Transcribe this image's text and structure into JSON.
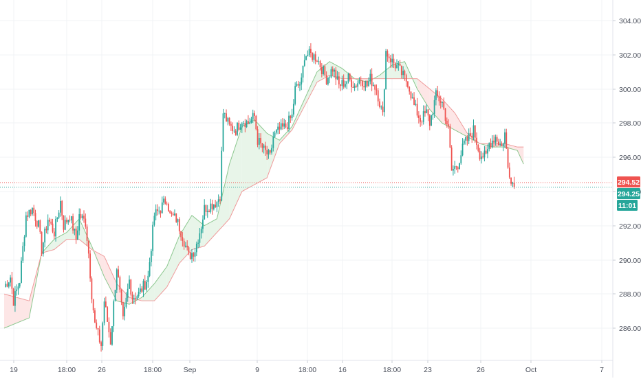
{
  "chart_data": {
    "type": "candlestick",
    "x_ticks": [
      "19",
      "18:00",
      "26",
      "18:00",
      "Sep",
      "9",
      "18:00",
      "16",
      "18:00",
      "23",
      "26",
      "Oct",
      "7"
    ],
    "y_ticks": [
      "286.00",
      "288.00",
      "290.00",
      "292.00",
      "294.00",
      "296.00",
      "298.00",
      "300.00",
      "302.00",
      "304.00"
    ],
    "ylim": [
      284.2,
      305.1
    ],
    "grid": true,
    "price_labels": {
      "top": {
        "text": "294.52",
        "value": 294.52,
        "color": "#ef5350"
      },
      "current": {
        "text": "294.25",
        "value": 294.25,
        "color": "#26a69a"
      },
      "countdown": {
        "text": "11:01",
        "color": "#26a69a"
      }
    },
    "colors": {
      "up": "#26a69a",
      "down": "#ef5350",
      "cloud_up": "#e8f5e9",
      "cloud_down": "#fde6e6",
      "span_a": "#8bc78e",
      "span_b": "#ef9a9a",
      "grid": "#f0f3f6",
      "axis_text": "#4a4f5b",
      "hline": "#26a69a"
    },
    "price_path": [
      [
        0,
        288.4
      ],
      [
        2,
        289.0
      ],
      [
        3,
        287.6
      ],
      [
        5,
        288.8
      ],
      [
        7,
        292.6
      ],
      [
        9,
        293.0
      ],
      [
        11,
        292.0
      ],
      [
        12,
        290.6
      ],
      [
        14,
        292.4
      ],
      [
        16,
        291.6
      ],
      [
        18,
        293.4
      ],
      [
        19,
        292.0
      ],
      [
        21,
        292.6
      ],
      [
        23,
        291.2
      ],
      [
        24,
        292.6
      ],
      [
        26,
        292.2
      ],
      [
        27,
        290.4
      ],
      [
        28,
        288.0
      ],
      [
        29,
        286.2
      ],
      [
        31,
        285.0
      ],
      [
        32,
        287.6
      ],
      [
        34,
        285.2
      ],
      [
        36,
        289.6
      ],
      [
        38,
        286.4
      ],
      [
        40,
        288.8
      ],
      [
        41,
        287.8
      ],
      [
        43,
        288.0
      ],
      [
        45,
        288.6
      ],
      [
        46,
        289.0
      ],
      [
        48,
        292.6
      ],
      [
        50,
        293.0
      ],
      [
        52,
        293.6
      ],
      [
        53,
        292.6
      ],
      [
        55,
        292.4
      ],
      [
        57,
        291.4
      ],
      [
        59,
        290.2
      ],
      [
        61,
        290.6
      ],
      [
        63,
        292.0
      ],
      [
        64,
        293.0
      ],
      [
        66,
        293.2
      ],
      [
        68,
        293.4
      ],
      [
        69,
        293.8
      ],
      [
        70,
        298.6
      ],
      [
        72,
        297.8
      ],
      [
        74,
        297.6
      ],
      [
        76,
        298.2
      ],
      [
        78,
        298.0
      ],
      [
        80,
        298.4
      ],
      [
        81,
        297.0
      ],
      [
        83,
        296.4
      ],
      [
        85,
        296.0
      ],
      [
        86,
        297.2
      ],
      [
        88,
        297.6
      ],
      [
        90,
        297.8
      ],
      [
        92,
        298.4
      ],
      [
        93,
        300.0
      ],
      [
        95,
        300.4
      ],
      [
        96,
        302.0
      ],
      [
        98,
        302.0
      ],
      [
        100,
        301.8
      ],
      [
        102,
        301.0
      ],
      [
        103,
        300.6
      ],
      [
        105,
        301.2
      ],
      [
        107,
        300.2
      ],
      [
        109,
        300.4
      ],
      [
        110,
        300.6
      ],
      [
        112,
        300.2
      ],
      [
        114,
        300.6
      ],
      [
        116,
        300.2
      ],
      [
        117,
        300.6
      ],
      [
        119,
        300.0
      ],
      [
        121,
        298.4
      ],
      [
        122,
        302.2
      ],
      [
        124,
        301.6
      ],
      [
        126,
        301.2
      ],
      [
        128,
        300.6
      ],
      [
        129,
        300.4
      ],
      [
        131,
        299.0
      ],
      [
        133,
        298.2
      ],
      [
        135,
        298.6
      ],
      [
        136,
        298.0
      ],
      [
        138,
        299.6
      ],
      [
        140,
        299.2
      ],
      [
        142,
        297.6
      ],
      [
        143,
        295.2
      ],
      [
        145,
        295.6
      ],
      [
        147,
        296.8
      ],
      [
        148,
        297.0
      ],
      [
        150,
        297.6
      ],
      [
        152,
        296.2
      ],
      [
        154,
        296.0
      ],
      [
        155,
        296.8
      ],
      [
        157,
        297.2
      ],
      [
        159,
        296.6
      ],
      [
        160,
        297.4
      ],
      [
        161,
        295.4
      ],
      [
        162,
        294.8
      ],
      [
        163,
        294.25
      ]
    ],
    "ichimoku_cloud": {
      "x": [
        0,
        8,
        12,
        16,
        20,
        24,
        28,
        32,
        36,
        40,
        44,
        48,
        52,
        56,
        60,
        64,
        68,
        72,
        76,
        80,
        84,
        88,
        92,
        96,
        100,
        104,
        108,
        112,
        116,
        120,
        124,
        128,
        132,
        136,
        140,
        144,
        148,
        152,
        156,
        160,
        164,
        166
      ],
      "span_a": [
        286.0,
        286.6,
        290.4,
        291.2,
        291.6,
        292.4,
        290.8,
        289.0,
        287.6,
        287.4,
        287.8,
        288.6,
        289.6,
        291.4,
        292.6,
        292.0,
        292.4,
        295.6,
        297.8,
        298.2,
        297.4,
        297.0,
        297.8,
        299.4,
        301.0,
        301.6,
        301.2,
        300.6,
        300.4,
        300.8,
        301.4,
        301.6,
        300.0,
        298.8,
        298.0,
        297.6,
        297.2,
        296.8,
        296.6,
        296.6,
        296.4,
        295.6
      ],
      "span_b": [
        288.0,
        287.6,
        290.4,
        290.6,
        291.2,
        291.2,
        290.6,
        290.2,
        288.6,
        287.8,
        287.6,
        287.6,
        288.4,
        289.8,
        290.6,
        290.8,
        291.6,
        292.4,
        294.0,
        294.4,
        294.8,
        296.8,
        297.6,
        299.0,
        300.4,
        300.8,
        300.6,
        300.6,
        300.6,
        300.6,
        300.6,
        300.6,
        300.6,
        300.0,
        299.4,
        298.6,
        297.4,
        296.8,
        296.8,
        296.8,
        296.6,
        296.6
      ]
    }
  }
}
